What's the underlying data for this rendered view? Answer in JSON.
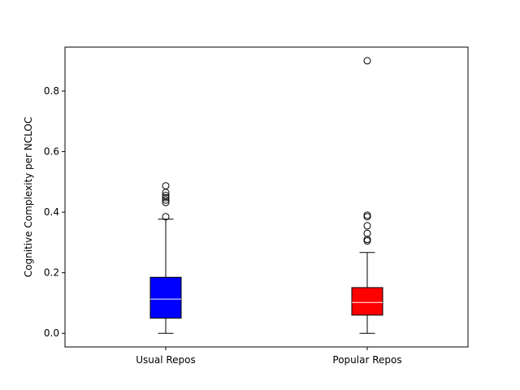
{
  "chart_data": {
    "type": "box",
    "title": "",
    "xlabel": "",
    "ylabel": "Cognitive Complexity per NCLOC",
    "ylim": [
      -0.045,
      0.945
    ],
    "yticks": [
      0.0,
      0.2,
      0.4,
      0.6,
      0.8
    ],
    "ytick_labels": [
      "0.0",
      "0.2",
      "0.4",
      "0.6",
      "0.8"
    ],
    "grid": false,
    "categories": [
      "Usual Repos",
      "Popular Repos"
    ],
    "boxes": [
      {
        "name": "Usual Repos",
        "color": "#0000ff",
        "whisker_low": 0.0,
        "q1": 0.05,
        "median": 0.113,
        "q3": 0.185,
        "whisker_high": 0.377,
        "outliers": [
          0.385,
          0.432,
          0.44,
          0.448,
          0.455,
          0.465,
          0.487
        ]
      },
      {
        "name": "Popular Repos",
        "color": "#ff0000",
        "whisker_low": 0.0,
        "q1": 0.06,
        "median": 0.102,
        "q3": 0.151,
        "whisker_high": 0.267,
        "outliers": [
          0.305,
          0.31,
          0.33,
          0.355,
          0.385,
          0.39,
          0.9
        ]
      }
    ]
  }
}
